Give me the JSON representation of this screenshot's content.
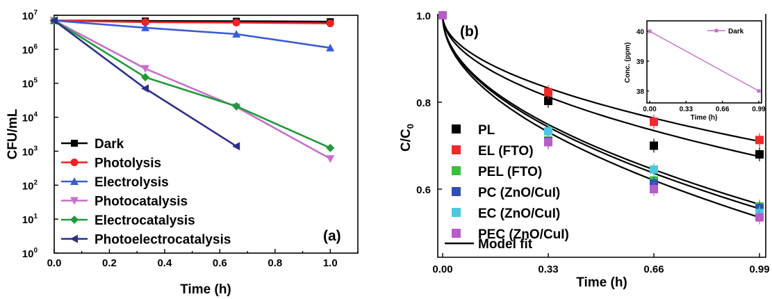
{
  "chart_data": [
    {
      "panel": "(a)",
      "type": "line",
      "xlabel": "Time (h)",
      "ylabel": "CFU/mL",
      "xlim": [
        0.0,
        1.1
      ],
      "ylim": [
        1,
        10000000
      ],
      "yscale": "log",
      "xticks": [
        "0.0",
        "0.2",
        "0.4",
        "0.6",
        "0.8",
        "1.0"
      ],
      "yticks": [
        "10",
        "10",
        "10",
        "10",
        "10",
        "10",
        "10",
        "10"
      ],
      "ytick_exponents": [
        "0",
        "1",
        "2",
        "3",
        "4",
        "5",
        "6",
        "7"
      ],
      "legend_position": "bottom-left",
      "series": [
        {
          "name": "Dark",
          "color": "#000000",
          "marker": "square",
          "x": [
            0,
            0.33,
            0.66,
            1.0
          ],
          "y": [
            7000000,
            6800000,
            6700000,
            6500000
          ]
        },
        {
          "name": "Photolysis",
          "color": "#ee2222",
          "marker": "circle",
          "x": [
            0,
            0.33,
            0.66,
            1.0
          ],
          "y": [
            7000000,
            6300000,
            6100000,
            5800000
          ]
        },
        {
          "name": "Electrolysis",
          "color": "#3b5bd9",
          "marker": "triangle-up",
          "x": [
            0,
            0.33,
            0.66,
            1.0
          ],
          "y": [
            7000000,
            4300000,
            2800000,
            1100000
          ]
        },
        {
          "name": "Photocatalysis",
          "color": "#c86fcb",
          "marker": "triangle-down",
          "x": [
            0,
            0.33,
            0.66,
            1.0
          ],
          "y": [
            7000000,
            270000,
            20000,
            600
          ]
        },
        {
          "name": "Electrocatalysis",
          "color": "#1f9a3a",
          "marker": "diamond",
          "x": [
            0,
            0.33,
            0.66,
            1.0
          ],
          "y": [
            7000000,
            150000,
            21000,
            1250
          ]
        },
        {
          "name": "Photoelectrocatalysis",
          "color": "#2b2f8a",
          "marker": "triangle-left",
          "x": [
            0,
            0.33,
            0.66
          ],
          "y": [
            7000000,
            70000,
            1400
          ]
        }
      ]
    },
    {
      "panel": "(b)",
      "type": "scatter",
      "xlabel": "Time (h)",
      "ylabel": "C/C",
      "ylabel_sub": "0",
      "xlim": [
        -0.02,
        1.0
      ],
      "ylim": [
        0.48,
        1.0
      ],
      "xticks": [
        "0.00",
        "0.33",
        "0.66",
        "0.99"
      ],
      "yticks": [
        "0.6",
        "0.8",
        "1.0"
      ],
      "legend_position": "bottom-left",
      "model_fit_label": "Model fit",
      "series": [
        {
          "name": "PL",
          "color": "#000000",
          "x": [
            0,
            0.33,
            0.66,
            0.99
          ],
          "y": [
            1.0,
            0.803,
            0.7,
            0.68
          ]
        },
        {
          "name": "EL (FTO)",
          "color": "#ee2a2a",
          "x": [
            0,
            0.33,
            0.66,
            0.99
          ],
          "y": [
            1.0,
            0.823,
            0.755,
            0.713
          ]
        },
        {
          "name": "PEL (FTO)",
          "color": "#3cbf3c",
          "x": [
            0,
            0.33,
            0.66,
            0.99
          ],
          "y": [
            1.0,
            0.712,
            0.62,
            0.56
          ]
        },
        {
          "name": "PC (ZnO/CuI)",
          "color": "#2f4fb8",
          "x": [
            0,
            0.33,
            0.66,
            0.99
          ],
          "y": [
            1.0,
            0.71,
            0.613,
            0.556
          ]
        },
        {
          "name": "EC (ZnO/CuI)",
          "color": "#4cc8e0",
          "x": [
            0,
            0.33,
            0.66,
            0.99
          ],
          "y": [
            1.0,
            0.733,
            0.645,
            0.545
          ]
        },
        {
          "name": "PEC (ZnO/CuI)",
          "color": "#b85cc8",
          "x": [
            0,
            0.33,
            0.66,
            0.99
          ],
          "y": [
            1.0,
            0.708,
            0.6,
            0.535
          ]
        }
      ],
      "fit_curves": [
        {
          "end": 0.71
        },
        {
          "end": 0.675
        },
        {
          "end": 0.565
        },
        {
          "end": 0.555
        },
        {
          "end": 0.535
        }
      ],
      "inset": {
        "type": "line",
        "xlabel": "Time (h)",
        "ylabel": "Conc. (ppm)",
        "xticks": [
          "0.00",
          "0.33",
          "0.66",
          "0.99"
        ],
        "yticks": [
          "38",
          "39",
          "40"
        ],
        "ylim": [
          37.6,
          40.35
        ],
        "series": [
          {
            "name": "Dark",
            "color": "#c86fcb",
            "x": [
              0,
              0.99
            ],
            "y": [
              40.0,
              38.0
            ]
          }
        ]
      }
    }
  ]
}
